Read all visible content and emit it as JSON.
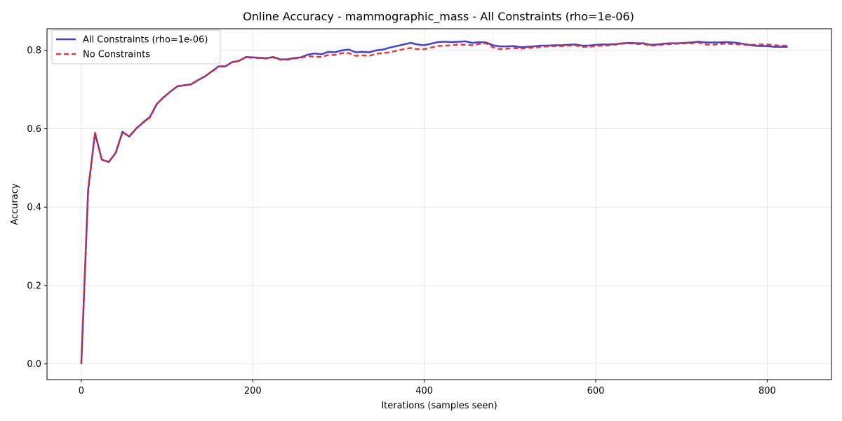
{
  "chart_data": {
    "type": "line",
    "title": "Online Accuracy - mammographic_mass - All Constraints (rho=1e-06)",
    "xlabel": "Iterations (samples seen)",
    "ylabel": "Accuracy",
    "xlim": [
      -40,
      875
    ],
    "ylim": [
      -0.04,
      0.855
    ],
    "xticks": [
      0,
      200,
      400,
      600,
      800
    ],
    "yticks": [
      0.0,
      0.2,
      0.4,
      0.6,
      0.8
    ],
    "xtick_labels": [
      "0",
      "200",
      "400",
      "600",
      "800"
    ],
    "ytick_labels": [
      "0.0",
      "0.2",
      "0.4",
      "0.6",
      "0.8"
    ],
    "grid": true,
    "legend_position": "top-left",
    "series": [
      {
        "name": "All Constraints (rho=1e-06)",
        "color": "#2b2bd9",
        "style": "solid",
        "points": [
          [
            0,
            0.0
          ],
          [
            8,
            0.445
          ],
          [
            16,
            0.588
          ],
          [
            24,
            0.521
          ],
          [
            32,
            0.515
          ],
          [
            40,
            0.538
          ],
          [
            48,
            0.592
          ],
          [
            56,
            0.58
          ],
          [
            64,
            0.6
          ],
          [
            72,
            0.616
          ],
          [
            80,
            0.63
          ],
          [
            88,
            0.663
          ],
          [
            96,
            0.68
          ],
          [
            104,
            0.695
          ],
          [
            112,
            0.708
          ],
          [
            120,
            0.711
          ],
          [
            128,
            0.713
          ],
          [
            136,
            0.724
          ],
          [
            144,
            0.733
          ],
          [
            152,
            0.746
          ],
          [
            160,
            0.759
          ],
          [
            168,
            0.759
          ],
          [
            176,
            0.77
          ],
          [
            184,
            0.773
          ],
          [
            192,
            0.783
          ],
          [
            200,
            0.782
          ],
          [
            208,
            0.781
          ],
          [
            216,
            0.78
          ],
          [
            224,
            0.783
          ],
          [
            232,
            0.777
          ],
          [
            240,
            0.777
          ],
          [
            248,
            0.78
          ],
          [
            256,
            0.782
          ],
          [
            264,
            0.789
          ],
          [
            272,
            0.792
          ],
          [
            280,
            0.79
          ],
          [
            288,
            0.796
          ],
          [
            296,
            0.795
          ],
          [
            304,
            0.8
          ],
          [
            312,
            0.802
          ],
          [
            320,
            0.795
          ],
          [
            328,
            0.796
          ],
          [
            336,
            0.795
          ],
          [
            344,
            0.8
          ],
          [
            352,
            0.802
          ],
          [
            360,
            0.807
          ],
          [
            368,
            0.811
          ],
          [
            376,
            0.815
          ],
          [
            384,
            0.819
          ],
          [
            392,
            0.815
          ],
          [
            400,
            0.813
          ],
          [
            408,
            0.817
          ],
          [
            416,
            0.821
          ],
          [
            424,
            0.822
          ],
          [
            432,
            0.821
          ],
          [
            440,
            0.822
          ],
          [
            448,
            0.823
          ],
          [
            456,
            0.819
          ],
          [
            464,
            0.821
          ],
          [
            472,
            0.82
          ],
          [
            480,
            0.813
          ],
          [
            488,
            0.81
          ],
          [
            496,
            0.81
          ],
          [
            504,
            0.811
          ],
          [
            512,
            0.808
          ],
          [
            520,
            0.809
          ],
          [
            528,
            0.81
          ],
          [
            536,
            0.812
          ],
          [
            544,
            0.812
          ],
          [
            552,
            0.813
          ],
          [
            560,
            0.813
          ],
          [
            568,
            0.814
          ],
          [
            576,
            0.815
          ],
          [
            584,
            0.812
          ],
          [
            592,
            0.812
          ],
          [
            600,
            0.814
          ],
          [
            608,
            0.815
          ],
          [
            616,
            0.815
          ],
          [
            624,
            0.816
          ],
          [
            632,
            0.818
          ],
          [
            640,
            0.819
          ],
          [
            648,
            0.818
          ],
          [
            656,
            0.818
          ],
          [
            664,
            0.814
          ],
          [
            672,
            0.815
          ],
          [
            680,
            0.817
          ],
          [
            688,
            0.818
          ],
          [
            696,
            0.818
          ],
          [
            704,
            0.819
          ],
          [
            712,
            0.82
          ],
          [
            720,
            0.822
          ],
          [
            728,
            0.82
          ],
          [
            736,
            0.82
          ],
          [
            744,
            0.82
          ],
          [
            752,
            0.821
          ],
          [
            760,
            0.82
          ],
          [
            768,
            0.818
          ],
          [
            776,
            0.815
          ],
          [
            784,
            0.812
          ],
          [
            792,
            0.811
          ],
          [
            800,
            0.811
          ],
          [
            808,
            0.809
          ],
          [
            816,
            0.809
          ],
          [
            824,
            0.809
          ]
        ]
      },
      {
        "name": "No Constraints",
        "color": "#ee2222",
        "style": "dashed",
        "points": [
          [
            0,
            0.0
          ],
          [
            8,
            0.44
          ],
          [
            16,
            0.59
          ],
          [
            24,
            0.52
          ],
          [
            32,
            0.516
          ],
          [
            40,
            0.537
          ],
          [
            48,
            0.59
          ],
          [
            56,
            0.581
          ],
          [
            64,
            0.601
          ],
          [
            72,
            0.615
          ],
          [
            80,
            0.629
          ],
          [
            88,
            0.662
          ],
          [
            96,
            0.681
          ],
          [
            104,
            0.694
          ],
          [
            112,
            0.709
          ],
          [
            120,
            0.71
          ],
          [
            128,
            0.714
          ],
          [
            136,
            0.723
          ],
          [
            144,
            0.734
          ],
          [
            152,
            0.745
          ],
          [
            160,
            0.758
          ],
          [
            168,
            0.76
          ],
          [
            176,
            0.769
          ],
          [
            184,
            0.774
          ],
          [
            192,
            0.782
          ],
          [
            200,
            0.781
          ],
          [
            208,
            0.78
          ],
          [
            216,
            0.779
          ],
          [
            224,
            0.782
          ],
          [
            232,
            0.776
          ],
          [
            240,
            0.776
          ],
          [
            248,
            0.779
          ],
          [
            256,
            0.781
          ],
          [
            264,
            0.785
          ],
          [
            272,
            0.784
          ],
          [
            280,
            0.783
          ],
          [
            288,
            0.788
          ],
          [
            296,
            0.788
          ],
          [
            304,
            0.793
          ],
          [
            312,
            0.793
          ],
          [
            320,
            0.786
          ],
          [
            328,
            0.787
          ],
          [
            336,
            0.786
          ],
          [
            344,
            0.791
          ],
          [
            352,
            0.793
          ],
          [
            360,
            0.795
          ],
          [
            368,
            0.799
          ],
          [
            376,
            0.803
          ],
          [
            384,
            0.806
          ],
          [
            392,
            0.803
          ],
          [
            400,
            0.803
          ],
          [
            408,
            0.807
          ],
          [
            416,
            0.811
          ],
          [
            424,
            0.812
          ],
          [
            432,
            0.813
          ],
          [
            440,
            0.815
          ],
          [
            448,
            0.814
          ],
          [
            456,
            0.813
          ],
          [
            464,
            0.816
          ],
          [
            472,
            0.818
          ],
          [
            480,
            0.808
          ],
          [
            488,
            0.803
          ],
          [
            496,
            0.804
          ],
          [
            504,
            0.806
          ],
          [
            512,
            0.804
          ],
          [
            520,
            0.806
          ],
          [
            528,
            0.807
          ],
          [
            536,
            0.809
          ],
          [
            544,
            0.81
          ],
          [
            552,
            0.811
          ],
          [
            560,
            0.811
          ],
          [
            568,
            0.812
          ],
          [
            576,
            0.813
          ],
          [
            584,
            0.809
          ],
          [
            592,
            0.809
          ],
          [
            600,
            0.811
          ],
          [
            608,
            0.812
          ],
          [
            616,
            0.813
          ],
          [
            624,
            0.815
          ],
          [
            632,
            0.817
          ],
          [
            640,
            0.818
          ],
          [
            648,
            0.816
          ],
          [
            656,
            0.816
          ],
          [
            664,
            0.812
          ],
          [
            672,
            0.813
          ],
          [
            680,
            0.815
          ],
          [
            688,
            0.816
          ],
          [
            696,
            0.817
          ],
          [
            704,
            0.818
          ],
          [
            712,
            0.818
          ],
          [
            720,
            0.82
          ],
          [
            728,
            0.815
          ],
          [
            736,
            0.814
          ],
          [
            744,
            0.816
          ],
          [
            752,
            0.817
          ],
          [
            760,
            0.816
          ],
          [
            768,
            0.815
          ],
          [
            776,
            0.814
          ],
          [
            784,
            0.814
          ],
          [
            792,
            0.815
          ],
          [
            800,
            0.815
          ],
          [
            808,
            0.813
          ],
          [
            816,
            0.812
          ],
          [
            824,
            0.812
          ]
        ]
      }
    ]
  }
}
